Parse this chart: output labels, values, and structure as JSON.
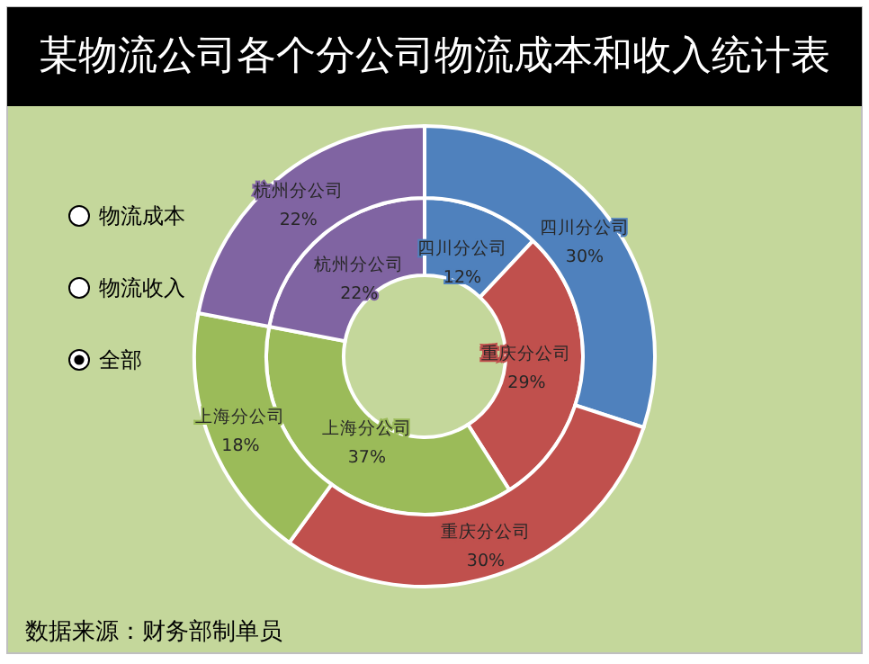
{
  "chart_data": {
    "type": "donut",
    "title": "某物流公司各个分公司物流成本和收入统计表",
    "categories": [
      "四川分公司",
      "重庆分公司",
      "上海分公司",
      "杭州分公司"
    ],
    "series": [
      {
        "colors": [
          "#4f81bd",
          "#c0504d",
          "#9bbb59",
          "#8064a2"
        ],
        "values": [
          12,
          29,
          37,
          22
        ],
        "value_labels": [
          "12%",
          "29%",
          "37%",
          "22%"
        ]
      },
      {
        "colors": [
          "#4f81bd",
          "#c0504d",
          "#9bbb59",
          "#8064a2"
        ],
        "values": [
          30,
          30,
          18,
          22
        ],
        "value_labels": [
          "30%",
          "30%",
          "18%",
          "22%"
        ]
      }
    ],
    "annotations": [
      "物流成本",
      "物流收入",
      "全部",
      "数据来源：财务部制单员"
    ]
  }
}
